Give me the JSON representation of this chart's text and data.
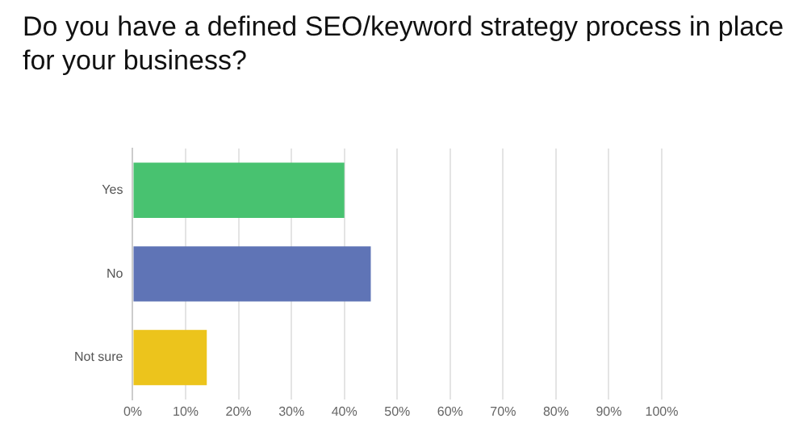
{
  "chart_data": {
    "type": "bar",
    "orientation": "horizontal",
    "title": "Do you have a defined SEO/keyword strategy process in place for your business?",
    "categories": [
      "Yes",
      "No",
      "Not sure"
    ],
    "values": [
      40,
      45,
      14
    ],
    "colors": [
      "#48c270",
      "#5f74b6",
      "#ecc41c"
    ],
    "xlim": [
      0,
      100
    ],
    "xticks": [
      {
        "value": 0,
        "label": "0%"
      },
      {
        "value": 10,
        "label": "10%"
      },
      {
        "value": 20,
        "label": "20%"
      },
      {
        "value": 30,
        "label": "30%"
      },
      {
        "value": 40,
        "label": "40%"
      },
      {
        "value": 50,
        "label": "50%"
      },
      {
        "value": 60,
        "label": "60%"
      },
      {
        "value": 70,
        "label": "70%"
      },
      {
        "value": 80,
        "label": "80%"
      },
      {
        "value": 90,
        "label": "90%"
      },
      {
        "value": 100,
        "label": "100%"
      }
    ],
    "grid": "x",
    "legend": false
  }
}
